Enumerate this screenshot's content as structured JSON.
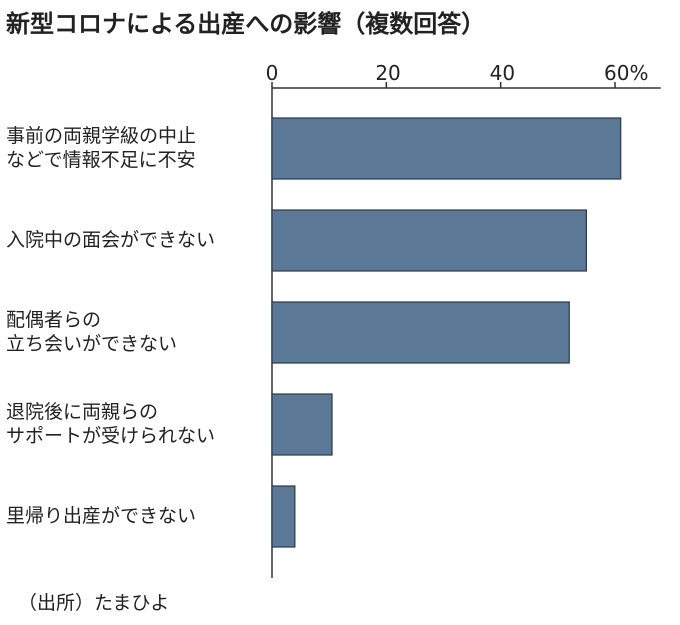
{
  "chart_data": {
    "type": "barh",
    "title": "新型コロナによる出産への影響（複数回答）",
    "source": "（出所）たまひよ",
    "categories": [
      "事前の両親学級の中止\nなどで情報不足に不安",
      "入院中の面会ができない",
      "配偶者らの\n立ち会いができない",
      "退院後に両親らの\nサポートが受けられない",
      "里帰り出産ができない"
    ],
    "values": [
      61,
      55,
      52,
      10.5,
      4
    ],
    "color": "#5b7896",
    "xlim": [
      0,
      68
    ],
    "xticks": [
      0,
      20,
      40,
      {
        "value": 60,
        "label": "60%"
      }
    ]
  }
}
